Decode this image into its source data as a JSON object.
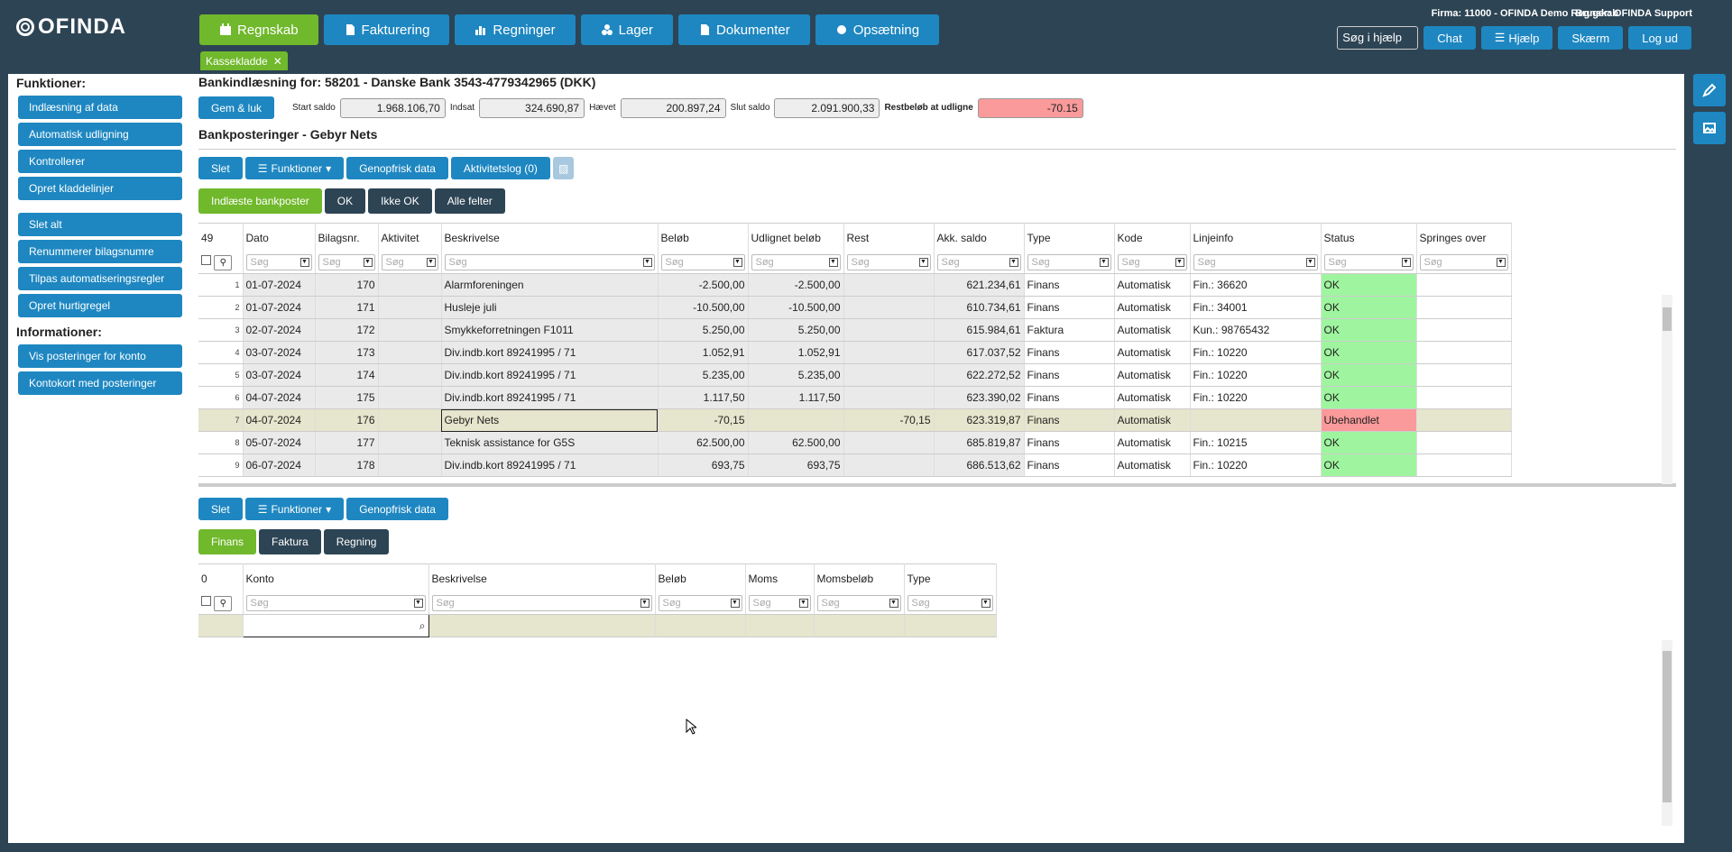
{
  "brand": "OFINDA",
  "nav": [
    {
      "label": "Regnskab",
      "icon": "calendar-icon",
      "active": true
    },
    {
      "label": "Fakturering",
      "icon": "document-icon"
    },
    {
      "label": "Regninger",
      "icon": "chart-icon"
    },
    {
      "label": "Lager",
      "icon": "boxes-icon"
    },
    {
      "label": "Dokumenter",
      "icon": "file-icon"
    },
    {
      "label": "Opsætning",
      "icon": "gear-icon"
    }
  ],
  "tab_kasse": "Kassekladde",
  "firm": "Firma: 11000 - OFINDA Demo Regnskab",
  "user": "Bruger: OFINDA Support",
  "top": {
    "search_placeholder": "Søg i hjælp",
    "chat": "Chat",
    "help": "Hjælp",
    "screen": "Skærm",
    "logout": "Log ud"
  },
  "sidebar": {
    "funk_title": "Funktioner:",
    "funk1": [
      "Indlæsning af data",
      "Automatisk udligning",
      "Kontrollerer",
      "Opret kladdelinjer"
    ],
    "funk2": [
      "Slet alt",
      "Renummerer bilagsnumre",
      "Tilpas automatiseringsregler",
      "Opret hurtigregel"
    ],
    "info_title": "Informationer:",
    "info": [
      "Vis posteringer for konto",
      "Kontokort med posteringer"
    ]
  },
  "page_title": "Bankindlæsning for: 58201 - Danske Bank 3543-4779342965 (DKK)",
  "summary": {
    "save": "Gem & luk",
    "start_label": "Start saldo",
    "start": "1.968.106,70",
    "ind_label": "Indsat",
    "ind": "324.690,87",
    "haev_label": "Hævet",
    "haev": "200.897,24",
    "slut_label": "Slut saldo",
    "slut": "2.091.900,33",
    "rest_label": "Restbeløb at udligne",
    "rest": "-70.15"
  },
  "section_title": "Bankposteringer - Gebyr Nets",
  "toolbar": {
    "delete": "Slet",
    "functions": "Funktioner",
    "refresh": "Genopfrisk data",
    "activity": "Aktivitetslog (0)"
  },
  "filters": [
    "Indlæste bankposter",
    "OK",
    "Ikke OK",
    "Alle felter"
  ],
  "search_ph": "Søg",
  "grid": {
    "count": "49",
    "columns": [
      "Dato",
      "Bilagsnr.",
      "Aktivitet",
      "Beskrivelse",
      "Beløb",
      "Udlignet beløb",
      "Rest",
      "Akk. saldo",
      "Type",
      "Kode",
      "Linjeinfo",
      "Status",
      "Springes over"
    ],
    "rows": [
      [
        "1",
        "01-07-2024",
        "170",
        "",
        "Alarmforeningen",
        "-2.500,00",
        "-2.500,00",
        "",
        "621.234,61",
        "Finans",
        "Automatisk",
        "Fin.: 36620",
        "OK",
        ""
      ],
      [
        "2",
        "01-07-2024",
        "171",
        "",
        "Husleje juli",
        "-10.500,00",
        "-10.500,00",
        "",
        "610.734,61",
        "Finans",
        "Automatisk",
        "Fin.: 34001",
        "OK",
        ""
      ],
      [
        "3",
        "02-07-2024",
        "172",
        "",
        "Smykkeforretningen F1011",
        "5.250,00",
        "5.250,00",
        "",
        "615.984,61",
        "Faktura",
        "Automatisk",
        "Kun.: 98765432",
        "OK",
        ""
      ],
      [
        "4",
        "03-07-2024",
        "173",
        "",
        "Div.indb.kort 89241995 / 71",
        "1.052,91",
        "1.052,91",
        "",
        "617.037,52",
        "Finans",
        "Automatisk",
        "Fin.: 10220",
        "OK",
        ""
      ],
      [
        "5",
        "03-07-2024",
        "174",
        "",
        "Div.indb.kort 89241995 / 71",
        "5.235,00",
        "5.235,00",
        "",
        "622.272,52",
        "Finans",
        "Automatisk",
        "Fin.: 10220",
        "OK",
        ""
      ],
      [
        "6",
        "04-07-2024",
        "175",
        "",
        "Div.indb.kort 89241995 / 71",
        "1.117,50",
        "1.117,50",
        "",
        "623.390,02",
        "Finans",
        "Automatisk",
        "Fin.: 10220",
        "OK",
        ""
      ],
      [
        "7",
        "04-07-2024",
        "176",
        "",
        "Gebyr Nets",
        "-70,15",
        "",
        "-70,15",
        "623.319,87",
        "Finans",
        "Automatisk",
        "",
        "Ubehandlet",
        ""
      ],
      [
        "8",
        "05-07-2024",
        "177",
        "",
        "Teknisk assistance for G5S",
        "62.500,00",
        "62.500,00",
        "",
        "685.819,87",
        "Finans",
        "Automatisk",
        "Fin.: 10215",
        "OK",
        ""
      ],
      [
        "9",
        "06-07-2024",
        "178",
        "",
        "Div.indb.kort 89241995 / 71",
        "693,75",
        "693,75",
        "",
        "686.513,62",
        "Finans",
        "Automatisk",
        "Fin.: 10220",
        "OK",
        ""
      ]
    ]
  },
  "lower": {
    "tabs": [
      "Finans",
      "Faktura",
      "Regning"
    ],
    "count": "0",
    "columns": [
      "Konto",
      "Beskrivelse",
      "Beløb",
      "Moms",
      "Momsbeløb",
      "Type"
    ]
  }
}
